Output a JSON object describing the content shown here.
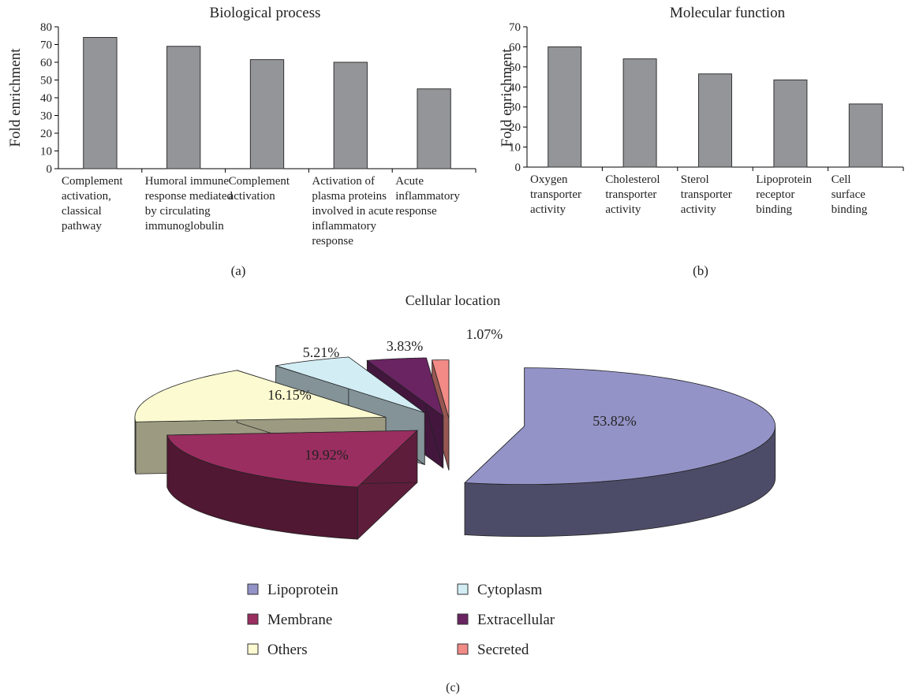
{
  "chart_data": [
    {
      "type": "bar",
      "panel": "(a)",
      "title": "Biological process",
      "ylabel": "Fold enrichment",
      "ylim": [
        0,
        80
      ],
      "yticks": [
        0,
        10,
        20,
        30,
        40,
        50,
        60,
        70,
        80
      ],
      "categories": [
        [
          "Complement",
          "activation,",
          "classical",
          "pathway"
        ],
        [
          "Humoral immune",
          "response mediated",
          "by circulating",
          "immunoglobulin"
        ],
        [
          "Complement",
          "activation"
        ],
        [
          "Activation of",
          "plasma proteins",
          "involved in acute",
          "inflammatory",
          "response"
        ],
        [
          "Acute",
          "inflammatory",
          "response"
        ]
      ],
      "values": [
        74,
        69,
        61.5,
        60,
        45
      ],
      "bar_color": "#949599"
    },
    {
      "type": "bar",
      "panel": "(b)",
      "title": "Molecular function",
      "ylabel": "Fold enrichment",
      "ylim": [
        0,
        70
      ],
      "yticks": [
        0,
        10,
        20,
        30,
        40,
        50,
        60,
        70
      ],
      "categories": [
        [
          "Oxygen",
          "transporter",
          "activity"
        ],
        [
          "Cholesterol",
          "transporter",
          "activity"
        ],
        [
          "Sterol",
          "transporter",
          "activity"
        ],
        [
          "Lipoprotein",
          "receptor",
          "binding"
        ],
        [
          "Cell",
          "surface",
          "binding"
        ]
      ],
      "values": [
        60,
        54,
        46.5,
        43.5,
        31.5
      ],
      "bar_color": "#949599"
    },
    {
      "type": "pie",
      "panel": "(c)",
      "title": "Cellular location",
      "slices": [
        {
          "name": "Lipoprotein",
          "value": 53.82,
          "label": "53.82%",
          "color": "#9493c8"
        },
        {
          "name": "Membrane",
          "value": 19.92,
          "label": "19.92%",
          "color": "#9a2e60"
        },
        {
          "name": "Others",
          "value": 16.15,
          "label": "16.15%",
          "color": "#fcfad0"
        },
        {
          "name": "Cytoplasm",
          "value": 5.21,
          "label": "5.21%",
          "color": "#d3edf5"
        },
        {
          "name": "Extracellular",
          "value": 3.83,
          "label": "3.83%",
          "color": "#6a2462"
        },
        {
          "name": "Secreted",
          "value": 1.07,
          "label": "1.07%",
          "color": "#f28a85"
        }
      ],
      "legend": "bottom",
      "legend_order": [
        "Lipoprotein",
        "Cytoplasm",
        "Membrane",
        "Extracellular",
        "Others",
        "Secreted"
      ]
    }
  ]
}
